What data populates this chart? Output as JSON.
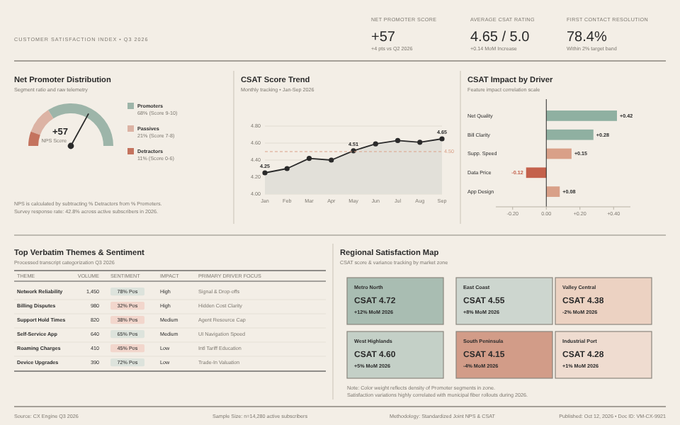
{
  "chart_data": [
    {
      "type": "other",
      "subtitle": "CUSTOMER SATISFACTION INDEX • Q3 2026",
      "categories": [
        "NET PROMOTER SCORE",
        "AVERAGE CSAT RATING",
        "FIRST CONTACT RESOLUTION"
      ],
      "values": [
        57,
        4.65,
        78.4
      ],
      "value_labels": [
        "+57",
        "4.65 / 5.0",
        "78.4%"
      ],
      "annotations": [
        "+4 pts vs Q2 2026",
        "+0.14 MoM Increase",
        "Within 2% target band",
        "Source: CX Engine Q3 2026",
        "Sample Size: n=14,280 active subscribers",
        "Methodology: Standardized Joint NPS & CSAT",
        "Published: Oct 12, 2026 • Doc ID: VM-CX-9921"
      ]
    },
    {
      "type": "donut",
      "title": "Net Promoter Distribution",
      "subtitle": "Segment ratio and raw telemetry",
      "categories": [
        "Promoters",
        "Passives",
        "Detractors"
      ],
      "values": [
        68,
        21,
        11
      ],
      "colors": [
        "#9db5a9",
        "#dcb3a4",
        "#c4735e"
      ],
      "value_labels": [
        "68% (Score 9-10)",
        "21% (Score 7-8)",
        "11% (Score 0-6)"
      ],
      "needle": "Promoters",
      "legend": "right",
      "annotations": [
        "+57",
        "NPS Score",
        "NPS is calculated by subtracting % Detractors from % Promoters.",
        "Survey response rate: 42.8% across active subscribers in 2026."
      ]
    },
    {
      "type": "area",
      "title": "CSAT Score Trend",
      "subtitle": "Monthly tracking • Jan-Sep 2026",
      "categories": [
        "Jan",
        "Feb",
        "Mar",
        "Apr",
        "May",
        "Jun",
        "Jul",
        "Aug",
        "Sep"
      ],
      "series": [
        {
          "color": "#2a2a2a",
          "values": [
            4.25,
            4.3,
            4.42,
            4.4,
            4.51,
            4.59,
            4.63,
            4.61,
            4.65
          ],
          "value_labels": [
            "4.25",
            null,
            null,
            null,
            "4.51",
            null,
            null,
            null,
            "4.65"
          ]
        }
      ],
      "ylim": [
        4.0,
        4.8
      ],
      "yticks": [
        {
          "value": 4.0,
          "label": "4.00"
        },
        {
          "value": 4.2,
          "label": "4.20"
        },
        {
          "value": 4.4,
          "label": "4.40"
        },
        {
          "value": 4.6,
          "label": "4.60"
        },
        {
          "value": 4.8,
          "label": "4.80"
        }
      ],
      "grid": "y",
      "marker": "circle",
      "ref_lines": [
        {
          "axis": "y",
          "value": 4.5,
          "label": "4.50",
          "color": "#d9a088",
          "line_style": "dashed"
        }
      ]
    },
    {
      "type": "bar",
      "orientation": "horizontal",
      "title": "CSAT Impact by Driver",
      "subtitle": "Feature impact correlation scale",
      "categories": [
        "Net Quality",
        "Bill Clarity",
        "Supp. Speed",
        "Data Price",
        "App Design"
      ],
      "values": [
        0.42,
        0.28,
        0.15,
        -0.12,
        0.08
      ],
      "colors": [
        "#8fb0a1",
        "#8fb0a1",
        "#d9a088",
        "#c4614c",
        "#d9a088"
      ],
      "value_labels": [
        "+0.42",
        "+0.28",
        "+0.15",
        "-0.12",
        "+0.08"
      ],
      "xlim": [
        -0.3,
        0.5
      ],
      "xticks": [
        {
          "value": -0.2,
          "label": "-0.20"
        },
        {
          "value": 0,
          "label": "0.00"
        },
        {
          "value": 0.2,
          "label": "+0.20"
        },
        {
          "value": 0.4,
          "label": "+0.40"
        }
      ]
    },
    {
      "type": "other",
      "title": "Top Verbatim Themes & Sentiment",
      "subtitle": "Processed transcript categorization Q3 2026",
      "categories": [
        "THEME",
        "VOLUME",
        "SENTIMENT",
        "IMPACT",
        "PRIMARY DRIVER FOCUS"
      ],
      "y_categories": [
        "Network Reliability",
        "Billing Disputes",
        "Support Hold Times",
        "Self-Service App",
        "Roaming Charges",
        "Device Upgrades"
      ],
      "cell_labels": [
        [
          "1,450",
          "78% Pos",
          "High",
          "Signal & Drop-offs"
        ],
        [
          "980",
          "32% Pos",
          "High",
          "Hidden Cost Clarity"
        ],
        [
          "820",
          "38% Pos",
          "Medium",
          "Agent Resource Cap"
        ],
        [
          "640",
          "65% Pos",
          "Medium",
          "UI Navigation Speed"
        ],
        [
          "410",
          "45% Pos",
          "Low",
          "Intl Tariff Education"
        ],
        [
          "390",
          "72% Pos",
          "Low",
          "Trade-In Valuation"
        ]
      ],
      "colors": [
        "#dde3dc",
        "#f2d6cc",
        "#f2d6cc",
        "#dde3dc",
        "#f2d6cc",
        "#dde3dc"
      ]
    },
    {
      "type": "other",
      "title": "Regional Satisfaction Map",
      "subtitle": "CSAT score & variance tracking by market zone",
      "categories": [
        "Metro North",
        "East Coast",
        "Valley Central",
        "West Highlands",
        "South Peninsula",
        "Industrial Port"
      ],
      "values": [
        4.72,
        4.55,
        4.38,
        4.6,
        4.15,
        4.28
      ],
      "value_labels": [
        "CSAT 4.72",
        "CSAT 4.55",
        "CSAT 4.38",
        "CSAT 4.60",
        "CSAT 4.15",
        "CSAT 4.28"
      ],
      "cell_labels": [
        [
          "+12% MoM 2026",
          "+8% MoM 2026",
          "-2% MoM 2026"
        ],
        [
          "+5% MoM 2026",
          "-4% MoM 2026",
          "+1% MoM 2026"
        ]
      ],
      "colors": [
        "#a9bdb2",
        "#cdd6cf",
        "#ecd2c2",
        "#c4d0c7",
        "#d29c88",
        "#efdcd0"
      ],
      "annotations": [
        "Note: Color weight reflects density of Promoter segments in zone.",
        "Satisfaction variations highly correlated with municipal fiber rollouts during 2026."
      ]
    }
  ]
}
